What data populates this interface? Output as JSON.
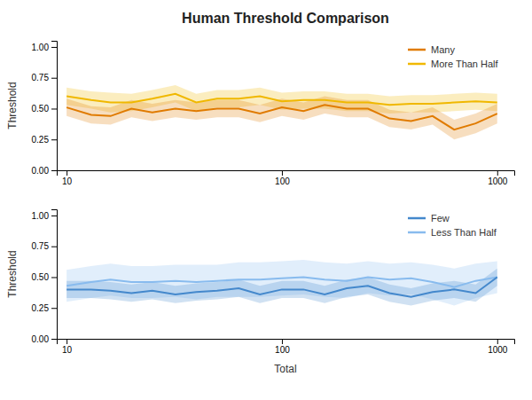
{
  "chart_data": [
    {
      "type": "line",
      "title": "Human Threshold Comparison",
      "ylabel": "Threshold",
      "x": [
        10,
        13,
        16,
        20,
        25,
        32,
        40,
        50,
        63,
        79,
        100,
        126,
        158,
        200,
        251,
        316,
        398,
        501,
        631,
        794,
        1000
      ],
      "series": [
        {
          "name": "More Than Half",
          "color": "#F0B800",
          "values": [
            0.6,
            0.57,
            0.55,
            0.55,
            0.58,
            0.62,
            0.55,
            0.58,
            0.58,
            0.6,
            0.56,
            0.57,
            0.57,
            0.55,
            0.55,
            0.53,
            0.54,
            0.54,
            0.55,
            0.56,
            0.55
          ],
          "low": [
            0.53,
            0.5,
            0.47,
            0.48,
            0.51,
            0.55,
            0.48,
            0.51,
            0.51,
            0.53,
            0.49,
            0.5,
            0.5,
            0.48,
            0.48,
            0.46,
            0.47,
            0.47,
            0.48,
            0.49,
            0.48
          ],
          "high": [
            0.67,
            0.64,
            0.63,
            0.62,
            0.65,
            0.69,
            0.62,
            0.65,
            0.65,
            0.67,
            0.63,
            0.64,
            0.64,
            0.62,
            0.62,
            0.6,
            0.61,
            0.61,
            0.62,
            0.63,
            0.62
          ]
        },
        {
          "name": "Many",
          "color": "#E07B00",
          "values": [
            0.51,
            0.45,
            0.44,
            0.5,
            0.47,
            0.5,
            0.48,
            0.5,
            0.5,
            0.46,
            0.51,
            0.48,
            0.53,
            0.5,
            0.5,
            0.42,
            0.4,
            0.44,
            0.33,
            0.38,
            0.46
          ],
          "low": [
            0.44,
            0.38,
            0.37,
            0.43,
            0.4,
            0.43,
            0.41,
            0.43,
            0.43,
            0.39,
            0.44,
            0.41,
            0.46,
            0.43,
            0.43,
            0.35,
            0.33,
            0.37,
            0.25,
            0.3,
            0.38
          ],
          "high": [
            0.58,
            0.52,
            0.51,
            0.57,
            0.54,
            0.57,
            0.55,
            0.57,
            0.57,
            0.53,
            0.58,
            0.55,
            0.6,
            0.57,
            0.57,
            0.49,
            0.47,
            0.51,
            0.41,
            0.46,
            0.54
          ]
        }
      ],
      "log": "x",
      "xlim": [
        9,
        1200
      ],
      "xticks": [
        10,
        100,
        1000
      ],
      "ylim": [
        0.0,
        1.05
      ],
      "yticks": [
        {
          "value": 0.0,
          "label": "0.00"
        },
        {
          "value": 0.25,
          "label": "0.25"
        },
        {
          "value": 0.5,
          "label": "0.50"
        },
        {
          "value": 0.75,
          "label": "0.75"
        },
        {
          "value": 1.0,
          "label": "1.00"
        }
      ],
      "grid": false,
      "legend": "upper right"
    },
    {
      "type": "line",
      "xlabel": "Total",
      "ylabel": "Threshold",
      "x": [
        10,
        13,
        16,
        20,
        25,
        32,
        40,
        50,
        63,
        79,
        100,
        126,
        158,
        200,
        251,
        316,
        398,
        501,
        631,
        794,
        1000
      ],
      "series": [
        {
          "name": "Less Than Half",
          "color": "#88BBEE",
          "values": [
            0.43,
            0.46,
            0.48,
            0.46,
            0.46,
            0.47,
            0.46,
            0.47,
            0.48,
            0.48,
            0.49,
            0.5,
            0.48,
            0.47,
            0.5,
            0.48,
            0.49,
            0.46,
            0.42,
            0.47,
            0.5
          ],
          "low": [
            0.3,
            0.33,
            0.35,
            0.33,
            0.33,
            0.34,
            0.32,
            0.34,
            0.34,
            0.34,
            0.35,
            0.36,
            0.34,
            0.33,
            0.37,
            0.35,
            0.36,
            0.32,
            0.27,
            0.33,
            0.37
          ],
          "high": [
            0.56,
            0.59,
            0.61,
            0.59,
            0.59,
            0.6,
            0.6,
            0.6,
            0.62,
            0.62,
            0.63,
            0.64,
            0.62,
            0.61,
            0.63,
            0.61,
            0.62,
            0.6,
            0.57,
            0.61,
            0.63
          ]
        },
        {
          "name": "Few",
          "color": "#4488CC",
          "values": [
            0.4,
            0.4,
            0.39,
            0.37,
            0.39,
            0.36,
            0.38,
            0.39,
            0.41,
            0.36,
            0.4,
            0.4,
            0.36,
            0.41,
            0.43,
            0.37,
            0.34,
            0.38,
            0.4,
            0.37,
            0.5
          ],
          "low": [
            0.33,
            0.33,
            0.32,
            0.3,
            0.32,
            0.29,
            0.31,
            0.32,
            0.34,
            0.29,
            0.33,
            0.33,
            0.29,
            0.34,
            0.36,
            0.3,
            0.27,
            0.31,
            0.33,
            0.3,
            0.43
          ],
          "high": [
            0.47,
            0.47,
            0.46,
            0.44,
            0.46,
            0.43,
            0.45,
            0.46,
            0.48,
            0.43,
            0.47,
            0.47,
            0.43,
            0.48,
            0.5,
            0.44,
            0.41,
            0.45,
            0.47,
            0.44,
            0.57
          ]
        }
      ],
      "log": "x",
      "xlim": [
        9,
        1200
      ],
      "xticks": [
        10,
        100,
        1000
      ],
      "ylim": [
        0.0,
        1.05
      ],
      "yticks": [
        {
          "value": 0.0,
          "label": "0.00"
        },
        {
          "value": 0.25,
          "label": "0.25"
        },
        {
          "value": 0.5,
          "label": "0.50"
        },
        {
          "value": 0.75,
          "label": "0.75"
        },
        {
          "value": 1.0,
          "label": "1.00"
        }
      ],
      "grid": false,
      "legend": "upper right"
    }
  ]
}
